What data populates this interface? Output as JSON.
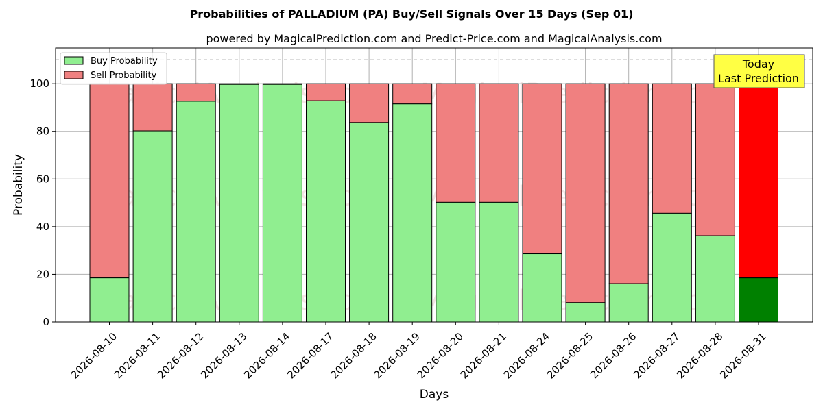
{
  "chart_data": {
    "type": "bar",
    "stacked": true,
    "title": "Probabilities of PALLADIUM (PA) Buy/Sell Signals Over 15 Days (Sep 01)",
    "subtitle": "powered by MagicalPrediction.com and Predict-Price.com and MagicalAnalysis.com",
    "xlabel": "Days",
    "ylabel": "Probability",
    "ylim": [
      0,
      115
    ],
    "yticks": [
      0,
      20,
      40,
      60,
      80,
      100
    ],
    "reference_line": 110,
    "grid": true,
    "legend_position": "top-left",
    "categories": [
      "2026-08-10",
      "2026-08-11",
      "2026-08-12",
      "2026-08-13",
      "2026-08-14",
      "2026-08-17",
      "2026-08-18",
      "2026-08-19",
      "2026-08-20",
      "2026-08-21",
      "2026-08-24",
      "2026-08-25",
      "2026-08-26",
      "2026-08-27",
      "2026-08-28",
      "2026-08-31"
    ],
    "series": [
      {
        "name": "Buy Probability",
        "color": "#90ee90",
        "values": [
          18.5,
          80.2,
          92.6,
          99.7,
          99.7,
          92.8,
          83.7,
          91.5,
          50.2,
          50.2,
          28.6,
          8.1,
          16.1,
          45.6,
          36.2,
          18.5
        ]
      },
      {
        "name": "Sell Probability",
        "color": "#f08080",
        "values": [
          81.5,
          19.8,
          7.4,
          0.3,
          0.3,
          7.2,
          16.3,
          8.5,
          49.8,
          49.8,
          71.4,
          91.9,
          83.9,
          54.4,
          63.8,
          81.5
        ]
      }
    ],
    "highlight": {
      "index": 15,
      "buy_color": "#008000",
      "sell_color": "#ff0000"
    },
    "annotation": {
      "lines": [
        "Today",
        "Last Prediction"
      ],
      "box_color": "#ffff44"
    },
    "watermarks": [
      "MagicalAnalysis.com",
      "MagicalPrediction.com"
    ]
  }
}
